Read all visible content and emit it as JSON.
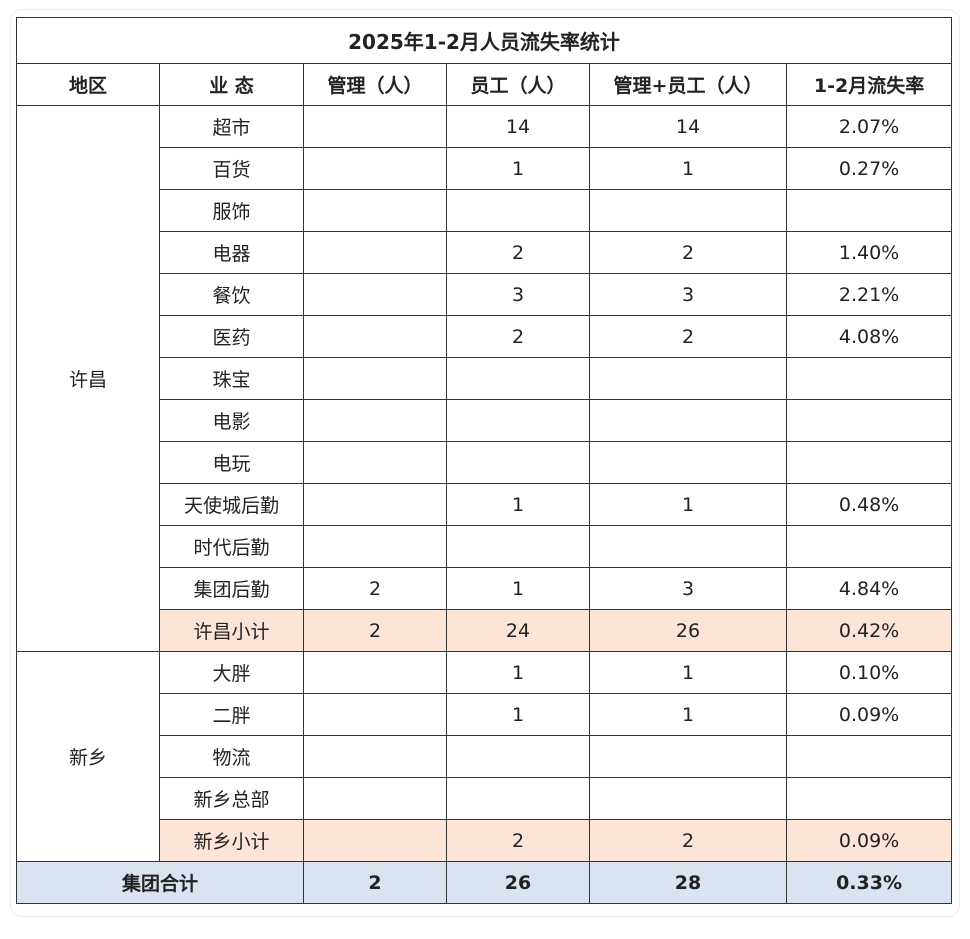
{
  "title": "2025年1-2月人员流失率统计",
  "headers": [
    "地区",
    "业 态",
    "管理（人）",
    "员工（人）",
    "管理+员工（人）",
    "1-2月流失率"
  ],
  "regions": [
    {
      "name": "许昌",
      "rows": [
        {
          "type": "超市",
          "mgmt": "",
          "staff": "14",
          "sum": "14",
          "rate": "2.07%"
        },
        {
          "type": "百货",
          "mgmt": "",
          "staff": "1",
          "sum": "1",
          "rate": "0.27%"
        },
        {
          "type": "服饰",
          "mgmt": "",
          "staff": "",
          "sum": "",
          "rate": ""
        },
        {
          "type": "电器",
          "mgmt": "",
          "staff": "2",
          "sum": "2",
          "rate": "1.40%"
        },
        {
          "type": "餐饮",
          "mgmt": "",
          "staff": "3",
          "sum": "3",
          "rate": "2.21%"
        },
        {
          "type": "医药",
          "mgmt": "",
          "staff": "2",
          "sum": "2",
          "rate": "4.08%"
        },
        {
          "type": "珠宝",
          "mgmt": "",
          "staff": "",
          "sum": "",
          "rate": ""
        },
        {
          "type": "电影",
          "mgmt": "",
          "staff": "",
          "sum": "",
          "rate": ""
        },
        {
          "type": "电玩",
          "mgmt": "",
          "staff": "",
          "sum": "",
          "rate": ""
        },
        {
          "type": "天使城后勤",
          "mgmt": "",
          "staff": "1",
          "sum": "1",
          "rate": "0.48%"
        },
        {
          "type": "时代后勤",
          "mgmt": "",
          "staff": "",
          "sum": "",
          "rate": ""
        },
        {
          "type": "集团后勤",
          "mgmt": "2",
          "staff": "1",
          "sum": "3",
          "rate": "4.84%"
        }
      ],
      "subtotal": {
        "type": "许昌小计",
        "mgmt": "2",
        "staff": "24",
        "sum": "26",
        "rate": "0.42%"
      }
    },
    {
      "name": "新乡",
      "rows": [
        {
          "type": "大胖",
          "mgmt": "",
          "staff": "1",
          "sum": "1",
          "rate": "0.10%"
        },
        {
          "type": "二胖",
          "mgmt": "",
          "staff": "1",
          "sum": "1",
          "rate": "0.09%"
        },
        {
          "type": "物流",
          "mgmt": "",
          "staff": "",
          "sum": "",
          "rate": ""
        },
        {
          "type": "新乡总部",
          "mgmt": "",
          "staff": "",
          "sum": "",
          "rate": ""
        }
      ],
      "subtotal": {
        "type": "新乡小计",
        "mgmt": "",
        "staff": "2",
        "sum": "2",
        "rate": "0.09%"
      }
    }
  ],
  "total": {
    "label": "集团合计",
    "mgmt": "2",
    "staff": "26",
    "sum": "28",
    "rate": "0.33%"
  },
  "colors": {
    "subtotal_bg": "#fce4d6",
    "total_bg": "#dae3f0"
  }
}
